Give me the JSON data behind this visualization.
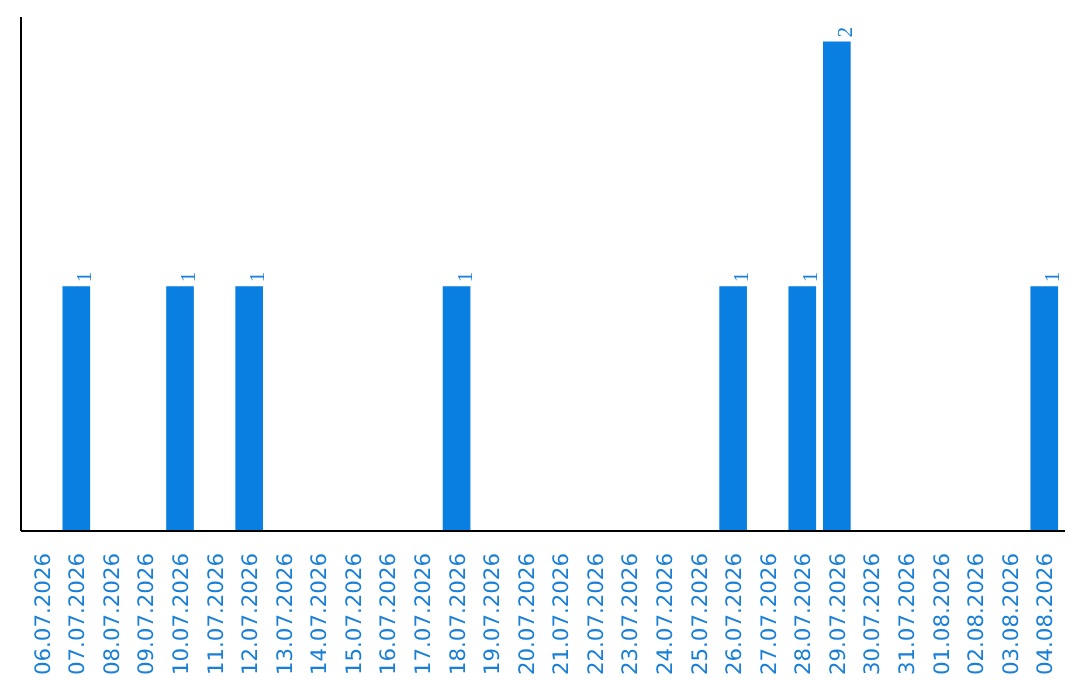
{
  "chart_data": {
    "type": "bar",
    "categories": [
      "06.07.2026",
      "07.07.2026",
      "08.07.2026",
      "09.07.2026",
      "10.07.2026",
      "11.07.2026",
      "12.07.2026",
      "13.07.2026",
      "14.07.2026",
      "15.07.2026",
      "16.07.2026",
      "17.07.2026",
      "18.07.2026",
      "19.07.2026",
      "20.07.2026",
      "21.07.2026",
      "22.07.2026",
      "23.07.2026",
      "24.07.2026",
      "25.07.2026",
      "26.07.2026",
      "27.07.2026",
      "28.07.2026",
      "29.07.2026",
      "30.07.2026",
      "31.07.2026",
      "01.08.2026",
      "02.08.2026",
      "03.08.2026",
      "04.08.2026"
    ],
    "values": [
      0,
      1,
      0,
      0,
      1,
      0,
      1,
      0,
      0,
      0,
      0,
      0,
      1,
      0,
      0,
      0,
      0,
      0,
      0,
      0,
      1,
      0,
      1,
      2,
      0,
      0,
      0,
      0,
      0,
      1
    ],
    "value_labels": [
      null,
      "1",
      null,
      null,
      "1",
      null,
      "1",
      null,
      null,
      null,
      null,
      null,
      "1",
      null,
      null,
      null,
      null,
      null,
      null,
      null,
      "1",
      null,
      "1",
      "2",
      null,
      null,
      null,
      null,
      null,
      "1"
    ],
    "color": "#0a7fe2",
    "tick_labels": "x",
    "grid": false
  }
}
